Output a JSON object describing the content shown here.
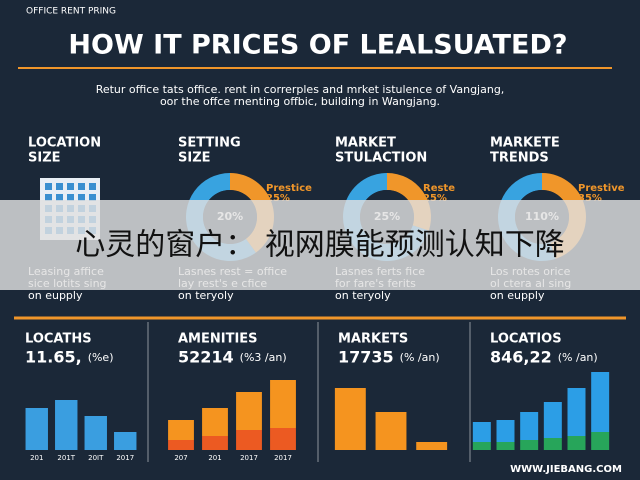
{
  "header": {
    "kicker": "OFFICE RENT PRING",
    "title": "HOW IT PRICES OF LEALSUATED?",
    "subtitle": [
      "Retur office tats office. rent in correrples and mrket istulence of Vangjang,",
      "oor the offce rnenting offbic, building in Wangjang."
    ]
  },
  "columns": [
    {
      "heading": [
        "LOCATION",
        "SIZE"
      ],
      "notes": [
        "Leasing affice",
        "sice lotits sing",
        "on eupply"
      ]
    },
    {
      "heading": [
        "SETTING",
        "SIZE"
      ],
      "center": "20%",
      "side": [
        "Prestice",
        "25%"
      ],
      "segments": [
        {
          "color": "#f0962a",
          "value": 40
        },
        {
          "color": "#38a3e0",
          "value": 60
        }
      ],
      "notes": [
        "Lasnes rest = office",
        "lay rest's e cfice",
        "on teryoly"
      ]
    },
    {
      "heading": [
        "MARKET",
        "STULACTION"
      ],
      "center": "25%",
      "side": [
        "Reste",
        "25%"
      ],
      "segments": [
        {
          "color": "#f0962a",
          "value": 30
        },
        {
          "color": "#38a3e0",
          "value": 70
        }
      ],
      "notes": [
        "Lasnes ferts fice",
        "for fare's ferits",
        "on teryoly"
      ]
    },
    {
      "heading": [
        "MARKETE",
        "TRENDS"
      ],
      "center": "110%",
      "side": [
        "Prestive",
        "35%"
      ],
      "segments": [
        {
          "color": "#f0962a",
          "value": 45
        },
        {
          "color": "#38a3e0",
          "value": 55
        }
      ],
      "notes": [
        "Los rotes orice",
        "ol ctera al sing",
        "on eupply"
      ]
    }
  ],
  "caption": "心灵的窗户： 视网膜能预测认知下降",
  "panels": [
    {
      "title": "LOCATHS",
      "value": "11.65,",
      "unit": "(%e)",
      "ylim": [
        0,
        80
      ],
      "xlabels": [
        "201",
        "201T",
        "20IT",
        "2017"
      ],
      "series": [
        {
          "color": "#3a9ee0",
          "values": [
            42,
            50,
            34,
            18
          ]
        }
      ]
    },
    {
      "title": "AMENITIES",
      "value": "52214",
      "unit": "(%3 /an)",
      "ylim": [
        0,
        80
      ],
      "xlabels": [
        "207",
        "201",
        "2017",
        "2017"
      ],
      "series": [
        {
          "color": "#ec5a22",
          "values": [
            10,
            14,
            20,
            22
          ]
        },
        {
          "color": "#f5941f",
          "values": [
            20,
            28,
            38,
            48
          ]
        }
      ]
    },
    {
      "title": "MARKETS",
      "value": "17735",
      "unit": "(% /an)",
      "ylim": [
        0,
        80
      ],
      "series": [
        {
          "color": "#f5941f",
          "values": [
            62,
            38,
            8
          ]
        }
      ]
    },
    {
      "title": "LOCATIOS",
      "value": "846,22",
      "unit": "(% /an)",
      "ylim": [
        0,
        80
      ],
      "series": [
        {
          "color": "#27a55a",
          "values": [
            8,
            8,
            10,
            12,
            14,
            18
          ]
        },
        {
          "color": "#2c9ee6",
          "values": [
            20,
            22,
            28,
            36,
            48,
            60
          ]
        }
      ]
    }
  ],
  "footer": "WWW.JIEBANG.COM"
}
